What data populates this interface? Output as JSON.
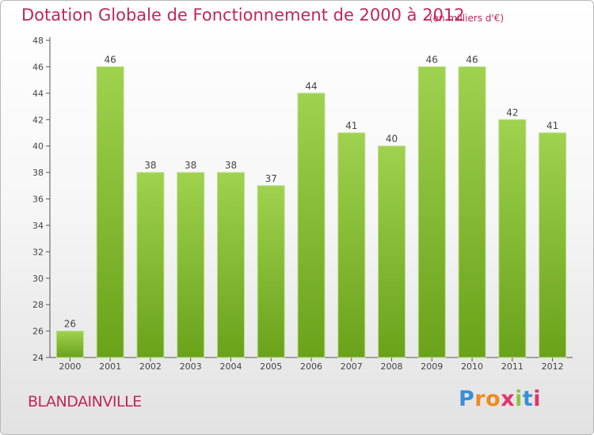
{
  "header": {
    "title": "Dotation Globale de Fonctionnement de 2000 à 2012",
    "unit_note": "(en milliers d'€)"
  },
  "footer": {
    "commune": "BLANDAINVILLE",
    "logo_text": "Proxiti"
  },
  "colors": {
    "bar_light": "#9fd24e",
    "bar_dark": "#6aa21a",
    "accent": "#c0265a"
  },
  "chart_data": {
    "type": "bar",
    "categories": [
      "2000",
      "2001",
      "2002",
      "2003",
      "2004",
      "2005",
      "2006",
      "2007",
      "2008",
      "2009",
      "2010",
      "2011",
      "2012"
    ],
    "values": [
      26,
      46,
      38,
      38,
      38,
      37,
      44,
      41,
      40,
      46,
      46,
      42,
      41
    ],
    "ylim": [
      24,
      48
    ],
    "yticks": [
      24,
      26,
      28,
      30,
      32,
      34,
      36,
      38,
      40,
      42,
      44,
      46,
      48
    ],
    "grid": false,
    "data_labels": true
  }
}
